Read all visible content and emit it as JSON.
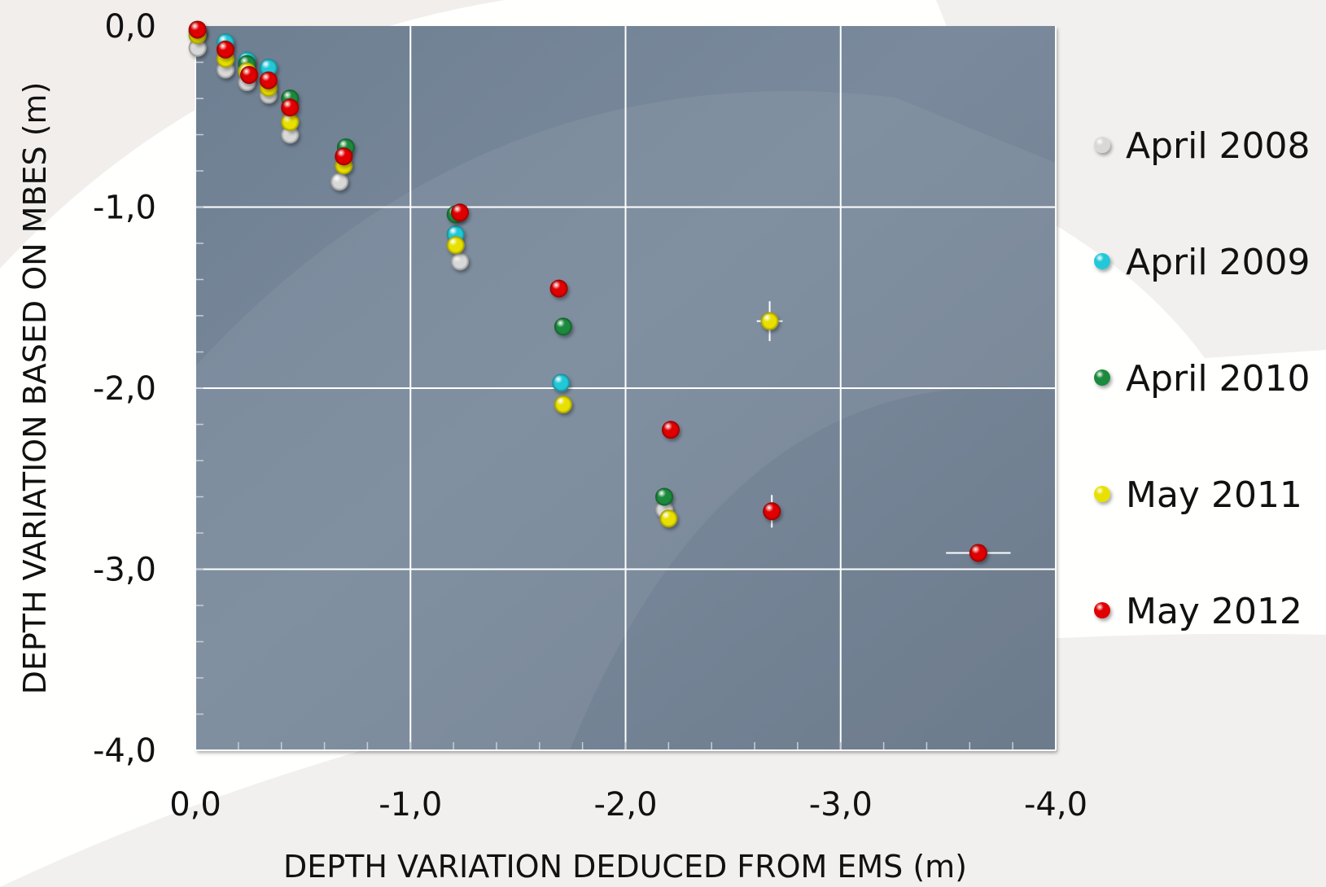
{
  "chart_data": {
    "type": "scatter",
    "xlabel": "DEPTH VARIATION DEDUCED FROM EMS (m)",
    "ylabel": "DEPTH VARIATION BASED ON MBES (m)",
    "xlim": [
      0,
      -4
    ],
    "ylim": [
      0,
      -4
    ],
    "x_ticks": [
      0,
      -1,
      -2,
      -3,
      -4
    ],
    "y_ticks": [
      0,
      -1,
      -2,
      -3,
      -4
    ],
    "x_tick_labels": [
      "0,0",
      "-1,0",
      "-2,0",
      "-3,0",
      "-4,0"
    ],
    "y_tick_labels": [
      "0,0",
      "-1,0",
      "-2,0",
      "-3,0",
      "-4,0"
    ],
    "grid": true,
    "legend_position": "right",
    "series": [
      {
        "name": "April 2008",
        "color": "#d8d8d8",
        "points": [
          {
            "x": -0.01,
            "y": -0.12
          },
          {
            "x": -0.14,
            "y": -0.24
          },
          {
            "x": -0.24,
            "y": -0.31
          },
          {
            "x": -0.34,
            "y": -0.38
          },
          {
            "x": -0.44,
            "y": -0.6
          },
          {
            "x": -0.67,
            "y": -0.86
          },
          {
            "x": -1.23,
            "y": -1.3
          },
          {
            "x": -2.18,
            "y": -2.67
          }
        ]
      },
      {
        "name": "April 2009",
        "color": "#22c8d8",
        "points": [
          {
            "x": -0.01,
            "y": -0.03
          },
          {
            "x": -0.14,
            "y": -0.09
          },
          {
            "x": -0.24,
            "y": -0.19
          },
          {
            "x": -0.34,
            "y": -0.23
          },
          {
            "x": -1.21,
            "y": -1.15
          },
          {
            "x": -1.7,
            "y": -1.97
          }
        ]
      },
      {
        "name": "April 2010",
        "color": "#1a8a3c",
        "points": [
          {
            "x": -0.24,
            "y": -0.21
          },
          {
            "x": -0.44,
            "y": -0.4
          },
          {
            "x": -0.7,
            "y": -0.67
          },
          {
            "x": -1.21,
            "y": -1.04
          },
          {
            "x": -1.71,
            "y": -1.66
          },
          {
            "x": -2.18,
            "y": -2.6
          }
        ]
      },
      {
        "name": "May 2011",
        "color": "#e8e000",
        "points": [
          {
            "x": -0.01,
            "y": -0.05
          },
          {
            "x": -0.14,
            "y": -0.18
          },
          {
            "x": -0.24,
            "y": -0.25
          },
          {
            "x": -0.34,
            "y": -0.34
          },
          {
            "x": -0.44,
            "y": -0.53
          },
          {
            "x": -0.69,
            "y": -0.77
          },
          {
            "x": -1.21,
            "y": -1.21
          },
          {
            "x": -1.71,
            "y": -2.09
          },
          {
            "x": -2.2,
            "y": -2.72
          },
          {
            "x": -2.67,
            "y": -1.63
          }
        ]
      },
      {
        "name": "May 2012",
        "color": "#e00000",
        "points": [
          {
            "x": -0.01,
            "y": -0.02
          },
          {
            "x": -0.14,
            "y": -0.13
          },
          {
            "x": -0.25,
            "y": -0.27
          },
          {
            "x": -0.34,
            "y": -0.3
          },
          {
            "x": -0.44,
            "y": -0.45
          },
          {
            "x": -0.69,
            "y": -0.72
          },
          {
            "x": -1.23,
            "y": -1.03
          },
          {
            "x": -1.69,
            "y": -1.45
          },
          {
            "x": -2.21,
            "y": -2.23
          },
          {
            "x": -2.68,
            "y": -2.68
          },
          {
            "x": -3.64,
            "y": -2.91
          }
        ]
      }
    ],
    "error_bars": [
      {
        "series": "May 2011",
        "x": -2.67,
        "y": -1.63,
        "x_err": 0.06,
        "y_err": 0.11
      },
      {
        "series": "May 2012",
        "x": -2.68,
        "y": -2.68,
        "x_err": 0.0,
        "y_err": 0.09
      },
      {
        "series": "May 2012",
        "x": -3.64,
        "y": -2.91,
        "x_err": 0.15,
        "y_err": 0.04
      }
    ]
  }
}
